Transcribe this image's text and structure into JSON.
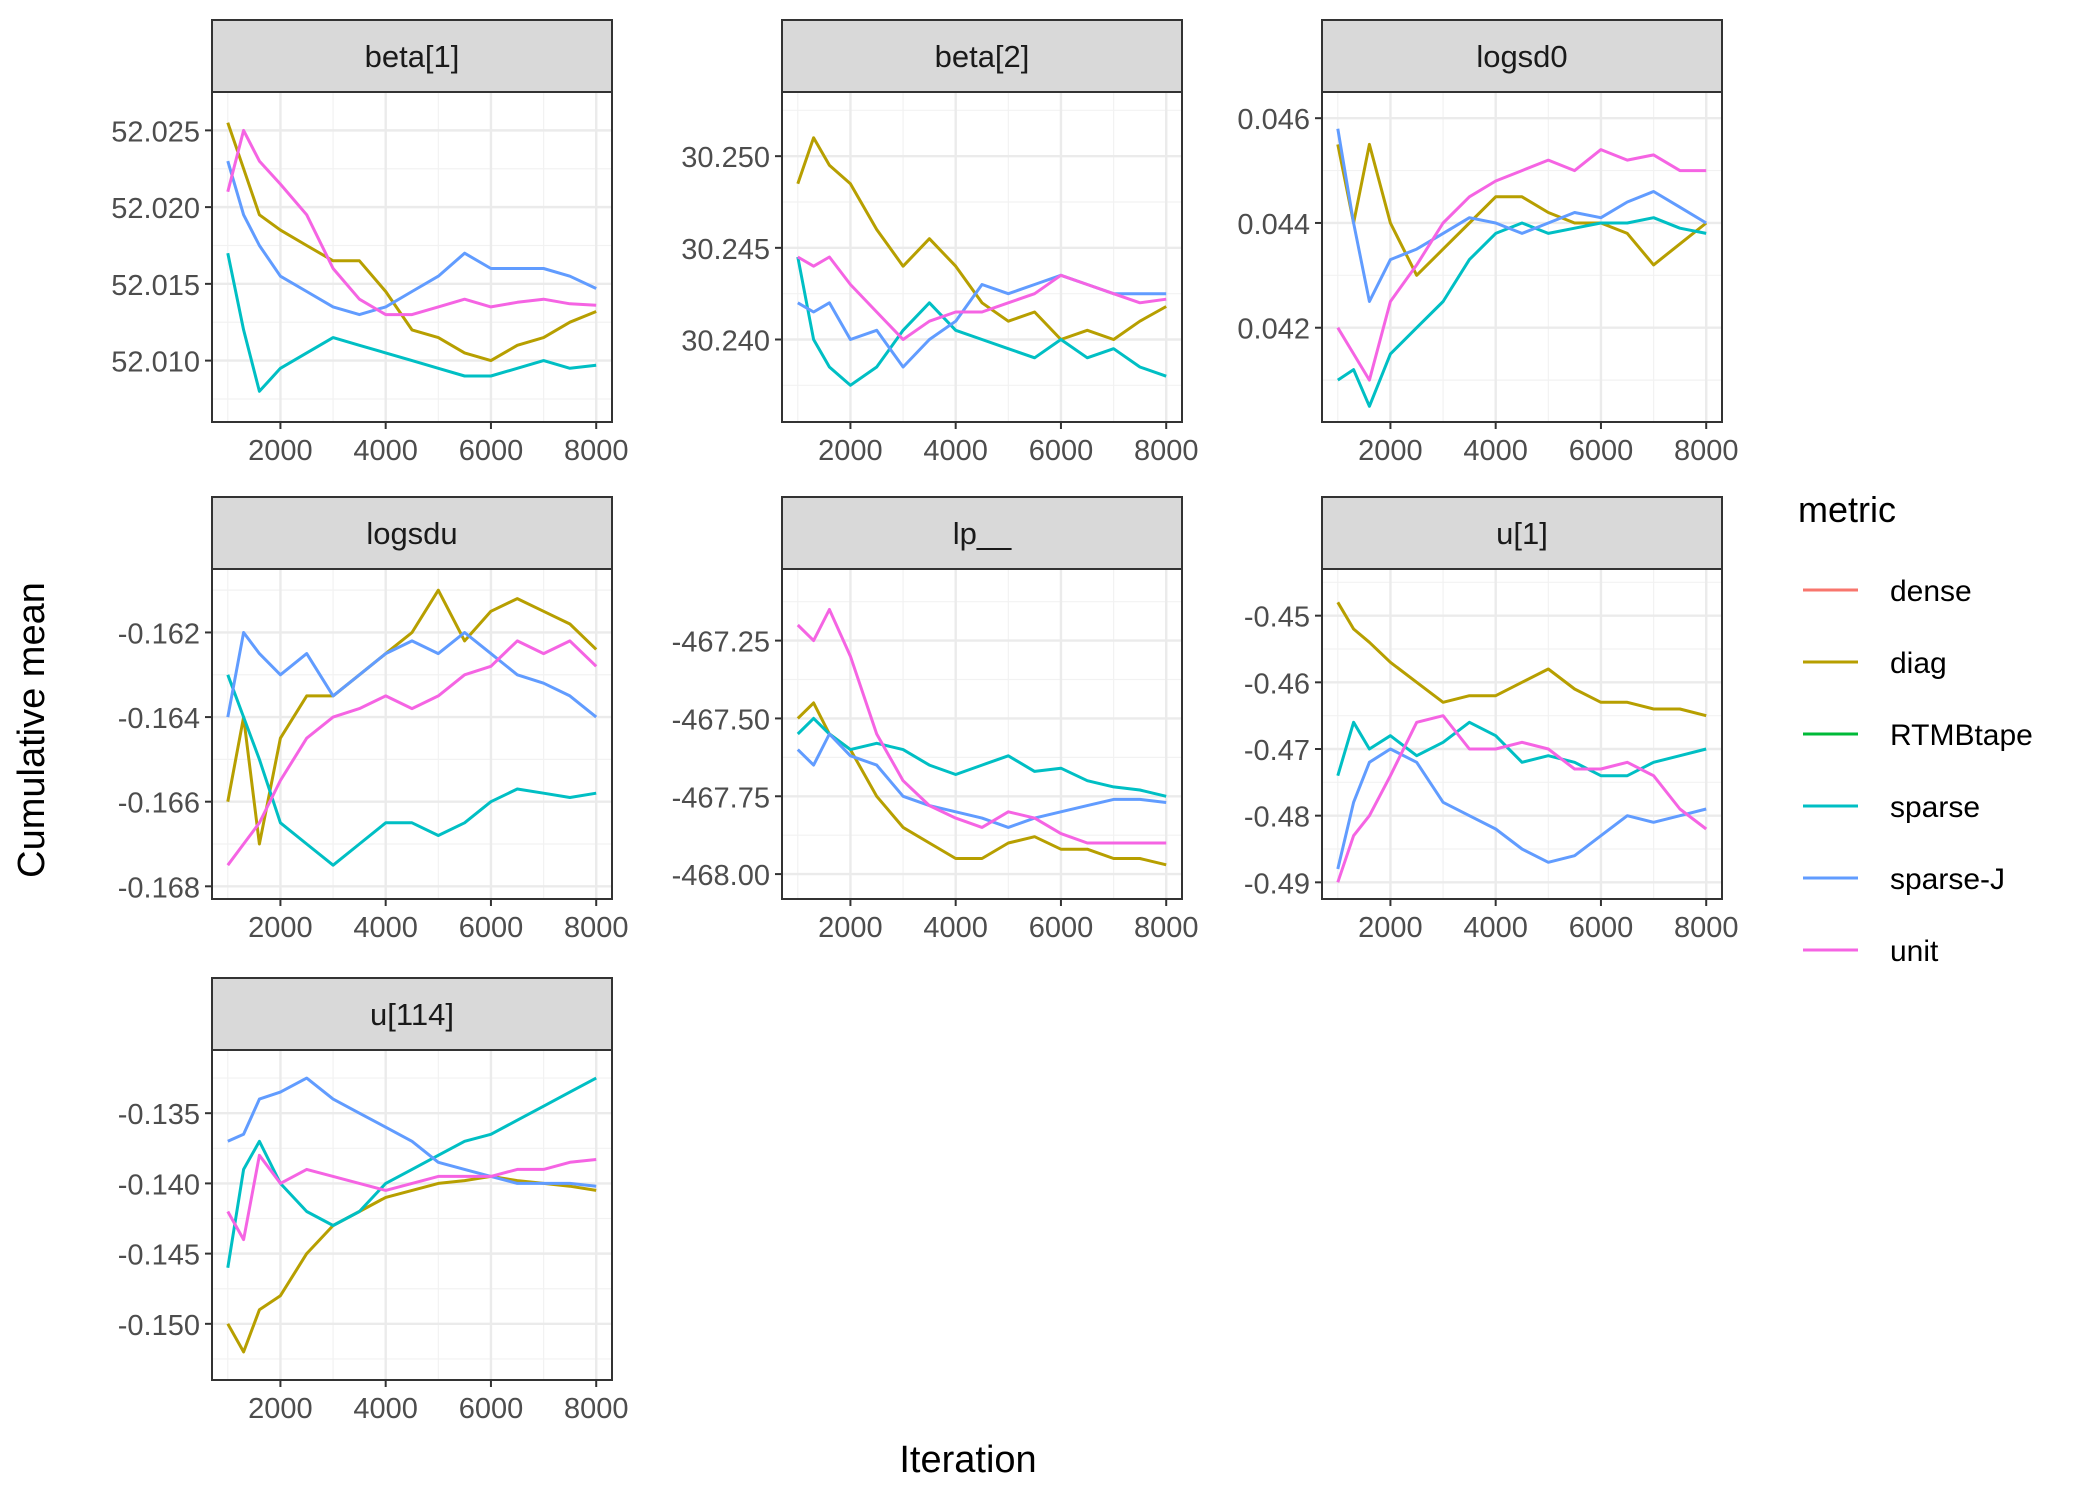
{
  "chart_data": {
    "type": "line",
    "facet_type": "wrap",
    "xlabel": "Iteration",
    "ylabel": "Cumulative mean",
    "legend": {
      "title": "metric",
      "position": "right",
      "entries": [
        {
          "name": "dense",
          "color": "#F8766D"
        },
        {
          "name": "diag",
          "color": "#B79F00"
        },
        {
          "name": "RTMBtape",
          "color": "#00BA38"
        },
        {
          "name": "sparse",
          "color": "#00BFC4"
        },
        {
          "name": "sparse-J",
          "color": "#619CFF"
        },
        {
          "name": "unit",
          "color": "#F564E3"
        }
      ]
    },
    "x_ticks": [
      2000,
      4000,
      6000,
      8000
    ],
    "x_tick_labels": [
      "2000",
      "4000",
      "6000",
      "8000"
    ],
    "xlim": [
      700,
      8300
    ],
    "grid": true,
    "panels": [
      {
        "title": "beta[1]",
        "ylim": [
          52.006,
          52.0275
        ],
        "y_ticks": [
          52.01,
          52.015,
          52.02,
          52.025
        ],
        "y_tick_labels": [
          "52.010",
          "52.015",
          "52.020",
          "52.025"
        ],
        "x": [
          1000,
          1300,
          1600,
          2000,
          2500,
          3000,
          3500,
          4000,
          4500,
          5000,
          5500,
          6000,
          6500,
          7000,
          7500,
          8000
        ],
        "series": [
          {
            "name": "diag",
            "values": [
              52.0255,
              52.0225,
              52.0195,
              52.0185,
              52.0175,
              52.0165,
              52.0165,
              52.0145,
              52.012,
              52.0115,
              52.0105,
              52.01,
              52.011,
              52.0115,
              52.0125,
              52.0132
            ]
          },
          {
            "name": "sparse",
            "values": [
              52.017,
              52.012,
              52.008,
              52.0095,
              52.0105,
              52.0115,
              52.011,
              52.0105,
              52.01,
              52.0095,
              52.009,
              52.009,
              52.0095,
              52.01,
              52.0095,
              52.0097
            ]
          },
          {
            "name": "sparse-J",
            "values": [
              52.023,
              52.0195,
              52.0175,
              52.0155,
              52.0145,
              52.0135,
              52.013,
              52.0135,
              52.0145,
              52.0155,
              52.017,
              52.016,
              52.016,
              52.016,
              52.0155,
              52.0147
            ]
          },
          {
            "name": "unit",
            "values": [
              52.021,
              52.025,
              52.023,
              52.0215,
              52.0195,
              52.016,
              52.014,
              52.013,
              52.013,
              52.0135,
              52.014,
              52.0135,
              52.0138,
              52.014,
              52.0137,
              52.0136
            ]
          }
        ]
      },
      {
        "title": "beta[2]",
        "ylim": [
          30.2355,
          30.2535
        ],
        "y_ticks": [
          30.24,
          30.245,
          30.25
        ],
        "y_tick_labels": [
          "30.240",
          "30.245",
          "30.250"
        ],
        "x": [
          1000,
          1300,
          1600,
          2000,
          2500,
          3000,
          3500,
          4000,
          4500,
          5000,
          5500,
          6000,
          6500,
          7000,
          7500,
          8000
        ],
        "series": [
          {
            "name": "diag",
            "values": [
              30.2485,
              30.251,
              30.2495,
              30.2485,
              30.246,
              30.244,
              30.2455,
              30.244,
              30.242,
              30.241,
              30.2415,
              30.24,
              30.2405,
              30.24,
              30.241,
              30.2418
            ]
          },
          {
            "name": "sparse",
            "values": [
              30.2445,
              30.24,
              30.2385,
              30.2375,
              30.2385,
              30.2405,
              30.242,
              30.2405,
              30.24,
              30.2395,
              30.239,
              30.24,
              30.239,
              30.2395,
              30.2385,
              30.238
            ]
          },
          {
            "name": "sparse-J",
            "values": [
              30.242,
              30.2415,
              30.242,
              30.24,
              30.2405,
              30.2385,
              30.24,
              30.241,
              30.243,
              30.2425,
              30.243,
              30.2435,
              30.243,
              30.2425,
              30.2425,
              30.2425
            ]
          },
          {
            "name": "unit",
            "values": [
              30.2445,
              30.244,
              30.2445,
              30.243,
              30.2415,
              30.24,
              30.241,
              30.2415,
              30.2415,
              30.242,
              30.2425,
              30.2435,
              30.243,
              30.2425,
              30.242,
              30.2422
            ]
          }
        ]
      },
      {
        "title": "logsd0",
        "ylim": [
          0.0402,
          0.0465
        ],
        "y_ticks": [
          0.042,
          0.044,
          0.046
        ],
        "y_tick_labels": [
          "0.042",
          "0.044",
          "0.046"
        ],
        "x": [
          1000,
          1300,
          1600,
          2000,
          2500,
          3000,
          3500,
          4000,
          4500,
          5000,
          5500,
          6000,
          6500,
          7000,
          7500,
          8000
        ],
        "series": [
          {
            "name": "diag",
            "values": [
              0.0455,
              0.044,
              0.0455,
              0.044,
              0.043,
              0.0435,
              0.044,
              0.0445,
              0.0445,
              0.0442,
              0.044,
              0.044,
              0.0438,
              0.0432,
              0.0436,
              0.044
            ]
          },
          {
            "name": "sparse",
            "values": [
              0.041,
              0.0412,
              0.0405,
              0.0415,
              0.042,
              0.0425,
              0.0433,
              0.0438,
              0.044,
              0.0438,
              0.0439,
              0.044,
              0.044,
              0.0441,
              0.0439,
              0.0438
            ]
          },
          {
            "name": "sparse-J",
            "values": [
              0.0458,
              0.044,
              0.0425,
              0.0433,
              0.0435,
              0.0438,
              0.0441,
              0.044,
              0.0438,
              0.044,
              0.0442,
              0.0441,
              0.0444,
              0.0446,
              0.0443,
              0.044
            ]
          },
          {
            "name": "unit",
            "values": [
              0.042,
              0.0415,
              0.041,
              0.0425,
              0.0432,
              0.044,
              0.0445,
              0.0448,
              0.045,
              0.0452,
              0.045,
              0.0454,
              0.0452,
              0.0453,
              0.045,
              0.045
            ]
          }
        ]
      },
      {
        "title": "logsdu",
        "ylim": [
          -0.1683,
          -0.1605
        ],
        "y_ticks": [
          -0.168,
          -0.166,
          -0.164,
          -0.162
        ],
        "y_tick_labels": [
          "-0.168",
          "-0.166",
          "-0.164",
          "-0.162"
        ],
        "x": [
          1000,
          1300,
          1600,
          2000,
          2500,
          3000,
          3500,
          4000,
          4500,
          5000,
          5500,
          6000,
          6500,
          7000,
          7500,
          8000
        ],
        "series": [
          {
            "name": "diag",
            "values": [
              -0.166,
              -0.164,
              -0.167,
              -0.1645,
              -0.1635,
              -0.1635,
              -0.163,
              -0.1625,
              -0.162,
              -0.161,
              -0.1622,
              -0.1615,
              -0.1612,
              -0.1615,
              -0.1618,
              -0.1624
            ]
          },
          {
            "name": "sparse",
            "values": [
              -0.163,
              -0.164,
              -0.165,
              -0.1665,
              -0.167,
              -0.1675,
              -0.167,
              -0.1665,
              -0.1665,
              -0.1668,
              -0.1665,
              -0.166,
              -0.1657,
              -0.1658,
              -0.1659,
              -0.1658
            ]
          },
          {
            "name": "sparse-J",
            "values": [
              -0.164,
              -0.162,
              -0.1625,
              -0.163,
              -0.1625,
              -0.1635,
              -0.163,
              -0.1625,
              -0.1622,
              -0.1625,
              -0.162,
              -0.1625,
              -0.163,
              -0.1632,
              -0.1635,
              -0.164
            ]
          },
          {
            "name": "unit",
            "values": [
              -0.1675,
              -0.167,
              -0.1665,
              -0.1655,
              -0.1645,
              -0.164,
              -0.1638,
              -0.1635,
              -0.1638,
              -0.1635,
              -0.163,
              -0.1628,
              -0.1622,
              -0.1625,
              -0.1622,
              -0.1628
            ]
          }
        ]
      },
      {
        "title": "lp__",
        "ylim": [
          -468.08,
          -467.02
        ],
        "y_ticks": [
          -468.0,
          -467.75,
          -467.5,
          -467.25
        ],
        "y_tick_labels": [
          "-468.00",
          "-467.75",
          "-467.50",
          "-467.25"
        ],
        "x": [
          1000,
          1300,
          1600,
          2000,
          2500,
          3000,
          3500,
          4000,
          4500,
          5000,
          5500,
          6000,
          6500,
          7000,
          7500,
          8000
        ],
        "series": [
          {
            "name": "diag",
            "values": [
              -467.5,
              -467.45,
              -467.55,
              -467.6,
              -467.75,
              -467.85,
              -467.9,
              -467.95,
              -467.95,
              -467.9,
              -467.88,
              -467.92,
              -467.92,
              -467.95,
              -467.95,
              -467.97
            ]
          },
          {
            "name": "sparse",
            "values": [
              -467.55,
              -467.5,
              -467.55,
              -467.6,
              -467.58,
              -467.6,
              -467.65,
              -467.68,
              -467.65,
              -467.62,
              -467.67,
              -467.66,
              -467.7,
              -467.72,
              -467.73,
              -467.75
            ]
          },
          {
            "name": "sparse-J",
            "values": [
              -467.6,
              -467.65,
              -467.55,
              -467.62,
              -467.65,
              -467.75,
              -467.78,
              -467.8,
              -467.82,
              -467.85,
              -467.82,
              -467.8,
              -467.78,
              -467.76,
              -467.76,
              -467.77
            ]
          },
          {
            "name": "unit",
            "values": [
              -467.2,
              -467.25,
              -467.15,
              -467.3,
              -467.55,
              -467.7,
              -467.78,
              -467.82,
              -467.85,
              -467.8,
              -467.82,
              -467.87,
              -467.9,
              -467.9,
              -467.9,
              -467.9
            ]
          }
        ]
      },
      {
        "title": "u[1]",
        "ylim": [
          -0.4925,
          -0.443
        ],
        "y_ticks": [
          -0.49,
          -0.48,
          -0.47,
          -0.46,
          -0.45
        ],
        "y_tick_labels": [
          "-0.49",
          "-0.48",
          "-0.47",
          "-0.46",
          "-0.45"
        ],
        "x": [
          1000,
          1300,
          1600,
          2000,
          2500,
          3000,
          3500,
          4000,
          4500,
          5000,
          5500,
          6000,
          6500,
          7000,
          7500,
          8000
        ],
        "series": [
          {
            "name": "diag",
            "values": [
              -0.448,
              -0.452,
              -0.454,
              -0.457,
              -0.46,
              -0.463,
              -0.462,
              -0.462,
              -0.46,
              -0.458,
              -0.461,
              -0.463,
              -0.463,
              -0.464,
              -0.464,
              -0.465
            ]
          },
          {
            "name": "sparse",
            "values": [
              -0.474,
              -0.466,
              -0.47,
              -0.468,
              -0.471,
              -0.469,
              -0.466,
              -0.468,
              -0.472,
              -0.471,
              -0.472,
              -0.474,
              -0.474,
              -0.472,
              -0.471,
              -0.47
            ]
          },
          {
            "name": "sparse-J",
            "values": [
              -0.488,
              -0.478,
              -0.472,
              -0.47,
              -0.472,
              -0.478,
              -0.48,
              -0.482,
              -0.485,
              -0.487,
              -0.486,
              -0.483,
              -0.48,
              -0.481,
              -0.48,
              -0.479
            ]
          },
          {
            "name": "unit",
            "values": [
              -0.49,
              -0.483,
              -0.48,
              -0.474,
              -0.466,
              -0.465,
              -0.47,
              -0.47,
              -0.469,
              -0.47,
              -0.473,
              -0.473,
              -0.472,
              -0.474,
              -0.479,
              -0.482
            ]
          }
        ]
      },
      {
        "title": "u[114]",
        "ylim": [
          -0.154,
          -0.1305
        ],
        "y_ticks": [
          -0.15,
          -0.145,
          -0.14,
          -0.135
        ],
        "y_tick_labels": [
          "-0.150",
          "-0.145",
          "-0.140",
          "-0.135"
        ],
        "x": [
          1000,
          1300,
          1600,
          2000,
          2500,
          3000,
          3500,
          4000,
          4500,
          5000,
          5500,
          6000,
          6500,
          7000,
          7500,
          8000
        ],
        "series": [
          {
            "name": "diag",
            "values": [
              -0.15,
              -0.152,
              -0.149,
              -0.148,
              -0.145,
              -0.143,
              -0.142,
              -0.141,
              -0.1405,
              -0.14,
              -0.1398,
              -0.1395,
              -0.1398,
              -0.14,
              -0.1402,
              -0.1405
            ]
          },
          {
            "name": "sparse",
            "values": [
              -0.146,
              -0.139,
              -0.137,
              -0.14,
              -0.142,
              -0.143,
              -0.142,
              -0.14,
              -0.139,
              -0.138,
              -0.137,
              -0.1365,
              -0.1355,
              -0.1345,
              -0.1335,
              -0.1325
            ]
          },
          {
            "name": "sparse-J",
            "values": [
              -0.137,
              -0.1365,
              -0.134,
              -0.1335,
              -0.1325,
              -0.134,
              -0.135,
              -0.136,
              -0.137,
              -0.1385,
              -0.139,
              -0.1395,
              -0.14,
              -0.14,
              -0.14,
              -0.1402
            ]
          },
          {
            "name": "unit",
            "values": [
              -0.142,
              -0.144,
              -0.138,
              -0.14,
              -0.139,
              -0.1395,
              -0.14,
              -0.1405,
              -0.14,
              -0.1395,
              -0.1395,
              -0.1395,
              -0.139,
              -0.139,
              -0.1385,
              -0.1383
            ]
          }
        ]
      }
    ]
  }
}
